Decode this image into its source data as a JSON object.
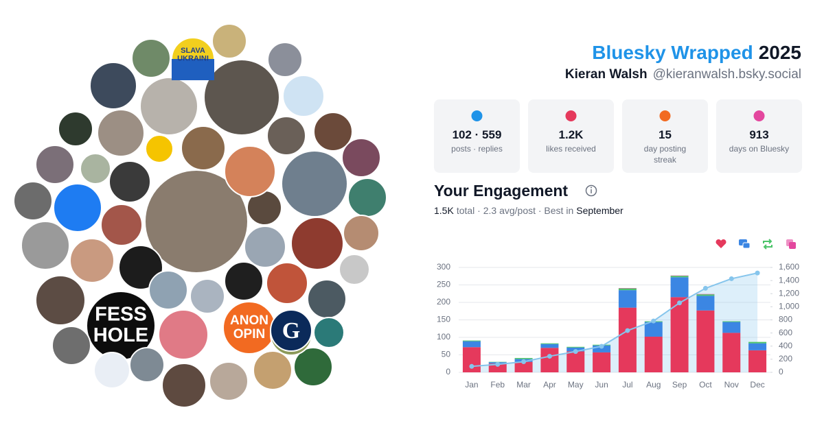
{
  "header": {
    "title_brand": "Bluesky Wrapped",
    "title_year": "2025",
    "name": "Kieran Walsh",
    "handle": "@kieranwalsh.bsky.social"
  },
  "badges": [
    {
      "lines": [
        "SLAVA",
        "UKRAINI"
      ]
    },
    {
      "lines": [
        "FESS",
        "HOLE"
      ]
    },
    {
      "lines": [
        "ANON",
        "OPIN"
      ]
    },
    {
      "lines": [
        "G"
      ]
    }
  ],
  "stats": [
    {
      "value": "102 · 559",
      "label": "posts · replies"
    },
    {
      "value": "1.2K",
      "label": "likes received"
    },
    {
      "value": "15",
      "label": "day posting streak"
    },
    {
      "value": "913",
      "label": "days on Bluesky"
    }
  ],
  "engagement": {
    "heading": "Your Engagement",
    "summary": [
      "1.5K",
      "total · 2.3 avg/post · Best in",
      "September"
    ]
  },
  "chart_data": {
    "type": "bar",
    "categories": [
      "Jan",
      "Feb",
      "Mar",
      "Apr",
      "May",
      "Jun",
      "Jul",
      "Aug",
      "Sep",
      "Oct",
      "Nov",
      "Dec"
    ],
    "series": [
      {
        "color": "#e5395c",
        "values": [
          72,
          25,
          30,
          70,
          60,
          57,
          185,
          102,
          215,
          177,
          113,
          63
        ]
      },
      {
        "color": "#3b86e3",
        "values": [
          17,
          4,
          8,
          11,
          11,
          20,
          50,
          42,
          57,
          42,
          31,
          20
        ]
      },
      {
        "color": "#4cc46a",
        "values": [
          2,
          1,
          3,
          2,
          2,
          2,
          5,
          2,
          4,
          4,
          2,
          4
        ]
      },
      {
        "color": "#e3479e",
        "values": [
          0,
          0,
          0,
          0,
          0,
          0,
          1,
          0,
          1,
          1,
          0,
          0
        ]
      },
      {
        "type": "line",
        "axis": "y2",
        "color": "#86c5ec",
        "values": [
          91,
          121,
          162,
          245,
          318,
          397,
          637,
          783,
          1059,
          1282,
          1428,
          1515
        ]
      }
    ],
    "ylim": [
      0,
      300
    ],
    "yticks": [
      0,
      50,
      100,
      150,
      200,
      250,
      300
    ],
    "y2lim": [
      0,
      1600
    ],
    "y2ticks": [
      0,
      200,
      400,
      600,
      800,
      {
        "value": 1000,
        "label": "1,000"
      },
      {
        "value": 1200,
        "label": "1,200"
      },
      {
        "value": 1400,
        "label": "1,400"
      },
      {
        "value": 1600,
        "label": "1,600"
      }
    ],
    "grid": true
  }
}
